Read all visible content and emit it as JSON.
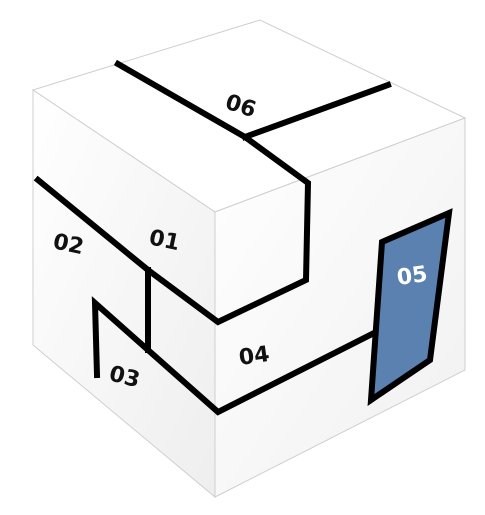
{
  "pieces": [
    {
      "id": "piece-01",
      "label": "01"
    },
    {
      "id": "piece-02",
      "label": "02"
    },
    {
      "id": "piece-03",
      "label": "03"
    },
    {
      "id": "piece-04",
      "label": "04"
    },
    {
      "id": "piece-05",
      "label": "05"
    },
    {
      "id": "piece-06",
      "label": "06"
    }
  ],
  "colors": {
    "face_light": "#ffffff",
    "face_shade": "#f4f4f4",
    "outline": "#000000",
    "highlight_fill": "#5a81b0",
    "label_dark": "#111111",
    "label_light": "#ffffff"
  }
}
